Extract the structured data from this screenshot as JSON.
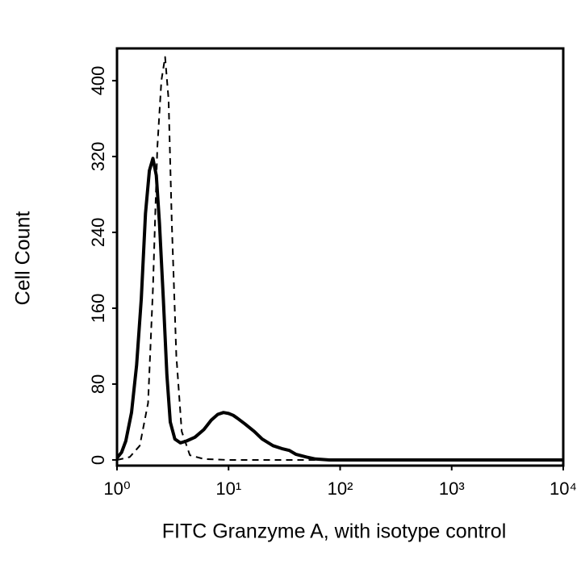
{
  "chart_data": {
    "type": "line",
    "xlabel": "FITC Granzyme A, with isotype control",
    "ylabel": "Cell Count",
    "xscale": "log",
    "xlim": [
      1,
      10000
    ],
    "ylim": [
      -6,
      434
    ],
    "xticks": [
      {
        "value": 1,
        "label": "10⁰"
      },
      {
        "value": 10,
        "label": "10¹"
      },
      {
        "value": 100,
        "label": "10²"
      },
      {
        "value": 1000,
        "label": "10³"
      },
      {
        "value": 10000,
        "label": "10⁴"
      }
    ],
    "yticks": [
      0,
      80,
      160,
      240,
      320,
      400
    ],
    "series": [
      {
        "color": "#000000",
        "dash": false,
        "x": [
          1,
          1.1,
          1.2,
          1.35,
          1.5,
          1.65,
          1.8,
          1.95,
          2.1,
          2.25,
          2.4,
          2.6,
          2.8,
          3.0,
          3.3,
          3.7,
          4.2,
          5,
          6,
          7,
          8,
          9,
          10,
          11,
          12,
          14,
          17,
          20,
          25,
          30,
          35,
          40,
          50,
          60,
          80,
          100,
          10000
        ],
        "values": [
          2,
          8,
          20,
          50,
          100,
          170,
          260,
          305,
          318,
          300,
          250,
          170,
          90,
          40,
          22,
          18,
          20,
          24,
          32,
          42,
          48,
          50,
          49,
          47,
          44,
          38,
          30,
          22,
          15,
          12,
          10,
          6,
          3,
          1,
          0,
          0,
          0
        ]
      },
      {
        "color": "#000000",
        "dash": true,
        "x": [
          1,
          1.3,
          1.6,
          1.9,
          2.1,
          2.3,
          2.5,
          2.7,
          2.9,
          3.1,
          3.4,
          3.8,
          4.5,
          6,
          10,
          30,
          100,
          10000
        ],
        "values": [
          0,
          3,
          15,
          60,
          180,
          330,
          400,
          425,
          380,
          250,
          110,
          30,
          5,
          1,
          0,
          0,
          0,
          0
        ]
      }
    ]
  }
}
